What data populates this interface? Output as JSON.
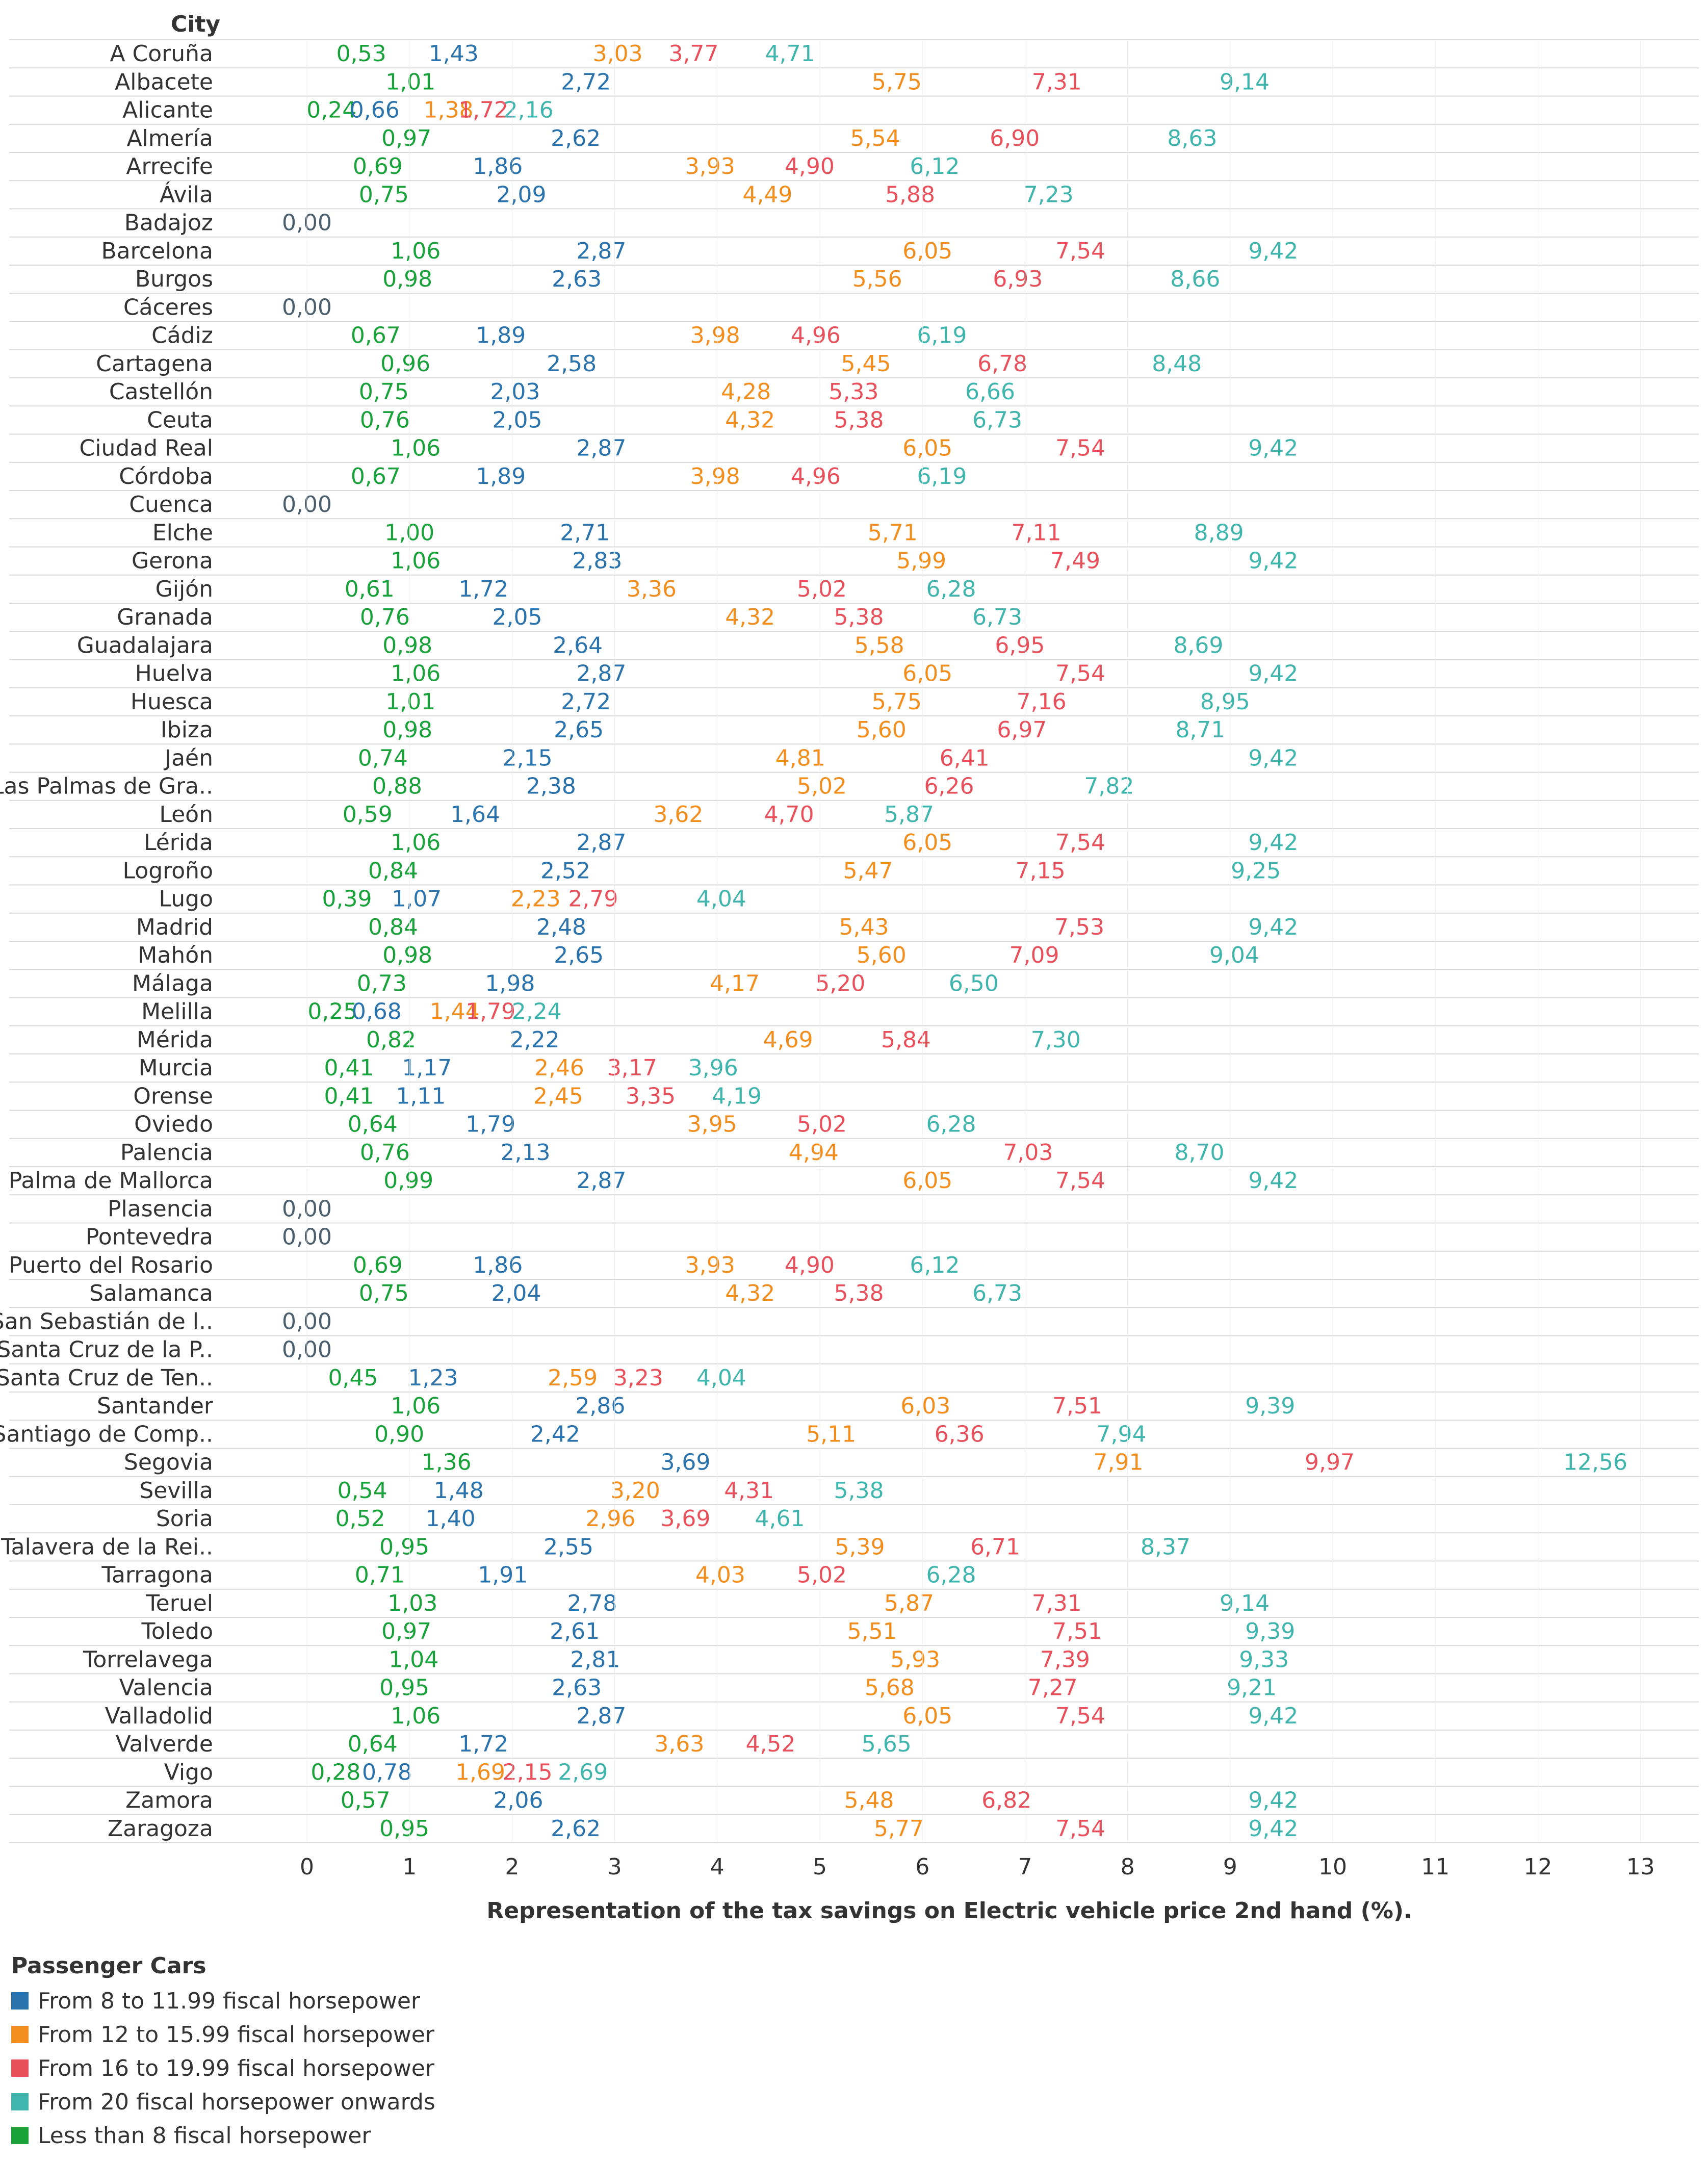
{
  "chart_data": {
    "type": "scatter",
    "row_header": "City",
    "xlabel": "Representation of the tax savings on Electric vehicle price 2nd hand (%).",
    "xlim": [
      0,
      13.5
    ],
    "xticks": [
      "0",
      "1",
      "2",
      "3",
      "4",
      "5",
      "6",
      "7",
      "8",
      "9",
      "10",
      "11",
      "12",
      "13"
    ],
    "legend_title": "Passenger Cars",
    "series": [
      {
        "key": "lt8",
        "name": "Less than 8 fiscal horsepower",
        "color": "#19a13a"
      },
      {
        "key": "hp8",
        "name": "From 8 to 11.99 fiscal horsepower",
        "color": "#2a73ad"
      },
      {
        "key": "hp12",
        "name": "From 12 to 15.99 fiscal horsepower",
        "color": "#f28e1e"
      },
      {
        "key": "hp16",
        "name": "From 16 to 19.99 fiscal horsepower",
        "color": "#e8505b"
      },
      {
        "key": "hp20",
        "name": "From 20 fiscal horsepower onwards",
        "color": "#3fb5ad"
      }
    ],
    "legend_order": [
      "hp8",
      "hp12",
      "hp16",
      "hp20",
      "lt8"
    ],
    "zero_color": "#4b5e6e",
    "rows": [
      {
        "city": "A Coruña",
        "values": [
          "0,53",
          "1,43",
          "3,03",
          "3,77",
          "4,71"
        ]
      },
      {
        "city": "Albacete",
        "values": [
          "1,01",
          "2,72",
          "5,75",
          "7,31",
          "9,14"
        ]
      },
      {
        "city": "Alicante",
        "values": [
          "0,24",
          "0,66",
          "1,38",
          "1,72",
          "2,16"
        ]
      },
      {
        "city": "Almería",
        "values": [
          "0,97",
          "2,62",
          "5,54",
          "6,90",
          "8,63"
        ]
      },
      {
        "city": "Arrecife",
        "values": [
          "0,69",
          "1,86",
          "3,93",
          "4,90",
          "6,12"
        ]
      },
      {
        "city": "Ávila",
        "values": [
          "0,75",
          "2,09",
          "4,49",
          "5,88",
          "7,23"
        ]
      },
      {
        "city": "Badajoz",
        "values": [
          "0,00"
        ]
      },
      {
        "city": "Barcelona",
        "values": [
          "1,06",
          "2,87",
          "6,05",
          "7,54",
          "9,42"
        ]
      },
      {
        "city": "Burgos",
        "values": [
          "0,98",
          "2,63",
          "5,56",
          "6,93",
          "8,66"
        ]
      },
      {
        "city": "Cáceres",
        "values": [
          "0,00"
        ]
      },
      {
        "city": "Cádiz",
        "values": [
          "0,67",
          "1,89",
          "3,98",
          "4,96",
          "6,19"
        ]
      },
      {
        "city": "Cartagena",
        "values": [
          "0,96",
          "2,58",
          "5,45",
          "6,78",
          "8,48"
        ]
      },
      {
        "city": "Castellón",
        "values": [
          "0,75",
          "2,03",
          "4,28",
          "5,33",
          "6,66"
        ]
      },
      {
        "city": "Ceuta",
        "values": [
          "0,76",
          "2,05",
          "4,32",
          "5,38",
          "6,73"
        ]
      },
      {
        "city": "Ciudad Real",
        "values": [
          "1,06",
          "2,87",
          "6,05",
          "7,54",
          "9,42"
        ]
      },
      {
        "city": "Córdoba",
        "values": [
          "0,67",
          "1,89",
          "3,98",
          "4,96",
          "6,19"
        ]
      },
      {
        "city": "Cuenca",
        "values": [
          "0,00"
        ]
      },
      {
        "city": "Elche",
        "values": [
          "1,00",
          "2,71",
          "5,71",
          "7,11",
          "8,89"
        ]
      },
      {
        "city": "Gerona",
        "values": [
          "1,06",
          "2,83",
          "5,99",
          "7,49",
          "9,42"
        ]
      },
      {
        "city": "Gijón",
        "values": [
          "0,61",
          "1,72",
          "3,36",
          "5,02",
          "6,28"
        ]
      },
      {
        "city": "Granada",
        "values": [
          "0,76",
          "2,05",
          "4,32",
          "5,38",
          "6,73"
        ]
      },
      {
        "city": "Guadalajara",
        "values": [
          "0,98",
          "2,64",
          "5,58",
          "6,95",
          "8,69"
        ]
      },
      {
        "city": "Huelva",
        "values": [
          "1,06",
          "2,87",
          "6,05",
          "7,54",
          "9,42"
        ]
      },
      {
        "city": "Huesca",
        "values": [
          "1,01",
          "2,72",
          "5,75",
          "7,16",
          "8,95"
        ]
      },
      {
        "city": "Ibiza",
        "values": [
          "0,98",
          "2,65",
          "5,60",
          "6,97",
          "8,71"
        ]
      },
      {
        "city": "Jaén",
        "values": [
          "0,74",
          "2,15",
          "4,81",
          "6,41",
          "9,42"
        ]
      },
      {
        "city": "Las Palmas de Gra..",
        "values": [
          "0,88",
          "2,38",
          "5,02",
          "6,26",
          "7,82"
        ]
      },
      {
        "city": "León",
        "values": [
          "0,59",
          "1,64",
          "3,62",
          "4,70",
          "5,87"
        ]
      },
      {
        "city": "Lérida",
        "values": [
          "1,06",
          "2,87",
          "6,05",
          "7,54",
          "9,42"
        ]
      },
      {
        "city": "Logroño",
        "values": [
          "0,84",
          "2,52",
          "5,47",
          "7,15",
          "9,25"
        ]
      },
      {
        "city": "Lugo",
        "values": [
          "0,39",
          "1,07",
          "2,23",
          "2,79",
          "4,04"
        ]
      },
      {
        "city": "Madrid",
        "values": [
          "0,84",
          "2,48",
          "5,43",
          "7,53",
          "9,42"
        ]
      },
      {
        "city": "Mahón",
        "values": [
          "0,98",
          "2,65",
          "5,60",
          "7,09",
          "9,04"
        ]
      },
      {
        "city": "Málaga",
        "values": [
          "0,73",
          "1,98",
          "4,17",
          "5,20",
          "6,50"
        ]
      },
      {
        "city": "Melilla",
        "values": [
          "0,25",
          "0,68",
          "1,44",
          "1,79",
          "2,24"
        ]
      },
      {
        "city": "Mérida",
        "values": [
          "0,82",
          "2,22",
          "4,69",
          "5,84",
          "7,30"
        ]
      },
      {
        "city": "Murcia",
        "values": [
          "0,41",
          "1,17",
          "2,46",
          "3,17",
          "3,96"
        ]
      },
      {
        "city": "Orense",
        "values": [
          "0,41",
          "1,11",
          "2,45",
          "3,35",
          "4,19"
        ]
      },
      {
        "city": "Oviedo",
        "values": [
          "0,64",
          "1,79",
          "3,95",
          "5,02",
          "6,28"
        ]
      },
      {
        "city": "Palencia",
        "values": [
          "0,76",
          "2,13",
          "4,94",
          "7,03",
          "8,70"
        ]
      },
      {
        "city": "Palma de Mallorca",
        "values": [
          "0,99",
          "2,87",
          "6,05",
          "7,54",
          "9,42"
        ]
      },
      {
        "city": "Plasencia",
        "values": [
          "0,00"
        ]
      },
      {
        "city": "Pontevedra",
        "values": [
          "0,00"
        ]
      },
      {
        "city": "Puerto del Rosario",
        "values": [
          "0,69",
          "1,86",
          "3,93",
          "4,90",
          "6,12"
        ]
      },
      {
        "city": "Salamanca",
        "values": [
          "0,75",
          "2,04",
          "4,32",
          "5,38",
          "6,73"
        ]
      },
      {
        "city": "San Sebastián de l..",
        "values": [
          "0,00"
        ]
      },
      {
        "city": "Santa Cruz de la P..",
        "values": [
          "0,00"
        ]
      },
      {
        "city": "Santa Cruz de Ten..",
        "values": [
          "0,45",
          "1,23",
          "2,59",
          "3,23",
          "4,04"
        ]
      },
      {
        "city": "Santander",
        "values": [
          "1,06",
          "2,86",
          "6,03",
          "7,51",
          "9,39"
        ]
      },
      {
        "city": "Santiago de Comp..",
        "values": [
          "0,90",
          "2,42",
          "5,11",
          "6,36",
          "7,94"
        ]
      },
      {
        "city": "Segovia",
        "values": [
          "1,36",
          "3,69",
          "7,91",
          "9,97",
          "12,56"
        ]
      },
      {
        "city": "Sevilla",
        "values": [
          "0,54",
          "1,48",
          "3,20",
          "4,31",
          "5,38"
        ]
      },
      {
        "city": "Soria",
        "values": [
          "0,52",
          "1,40",
          "2,96",
          "3,69",
          "4,61"
        ]
      },
      {
        "city": "Talavera de la Rei..",
        "values": [
          "0,95",
          "2,55",
          "5,39",
          "6,71",
          "8,37"
        ]
      },
      {
        "city": "Tarragona",
        "values": [
          "0,71",
          "1,91",
          "4,03",
          "5,02",
          "6,28"
        ]
      },
      {
        "city": "Teruel",
        "values": [
          "1,03",
          "2,78",
          "5,87",
          "7,31",
          "9,14"
        ]
      },
      {
        "city": "Toledo",
        "values": [
          "0,97",
          "2,61",
          "5,51",
          "7,51",
          "9,39"
        ]
      },
      {
        "city": "Torrelavega",
        "values": [
          "1,04",
          "2,81",
          "5,93",
          "7,39",
          "9,33"
        ]
      },
      {
        "city": "Valencia",
        "values": [
          "0,95",
          "2,63",
          "5,68",
          "7,27",
          "9,21"
        ]
      },
      {
        "city": "Valladolid",
        "values": [
          "1,06",
          "2,87",
          "6,05",
          "7,54",
          "9,42"
        ]
      },
      {
        "city": "Valverde",
        "values": [
          "0,64",
          "1,72",
          "3,63",
          "4,52",
          "5,65"
        ]
      },
      {
        "city": "Vigo",
        "values": [
          "0,28",
          "0,78",
          "1,69",
          "2,15",
          "2,69"
        ]
      },
      {
        "city": "Zamora",
        "values": [
          "0,57",
          "2,06",
          "5,48",
          "6,82",
          "9,42"
        ]
      },
      {
        "city": "Zaragoza",
        "values": [
          "0,95",
          "2,62",
          "5,77",
          "7,54",
          "9,42"
        ]
      }
    ]
  }
}
